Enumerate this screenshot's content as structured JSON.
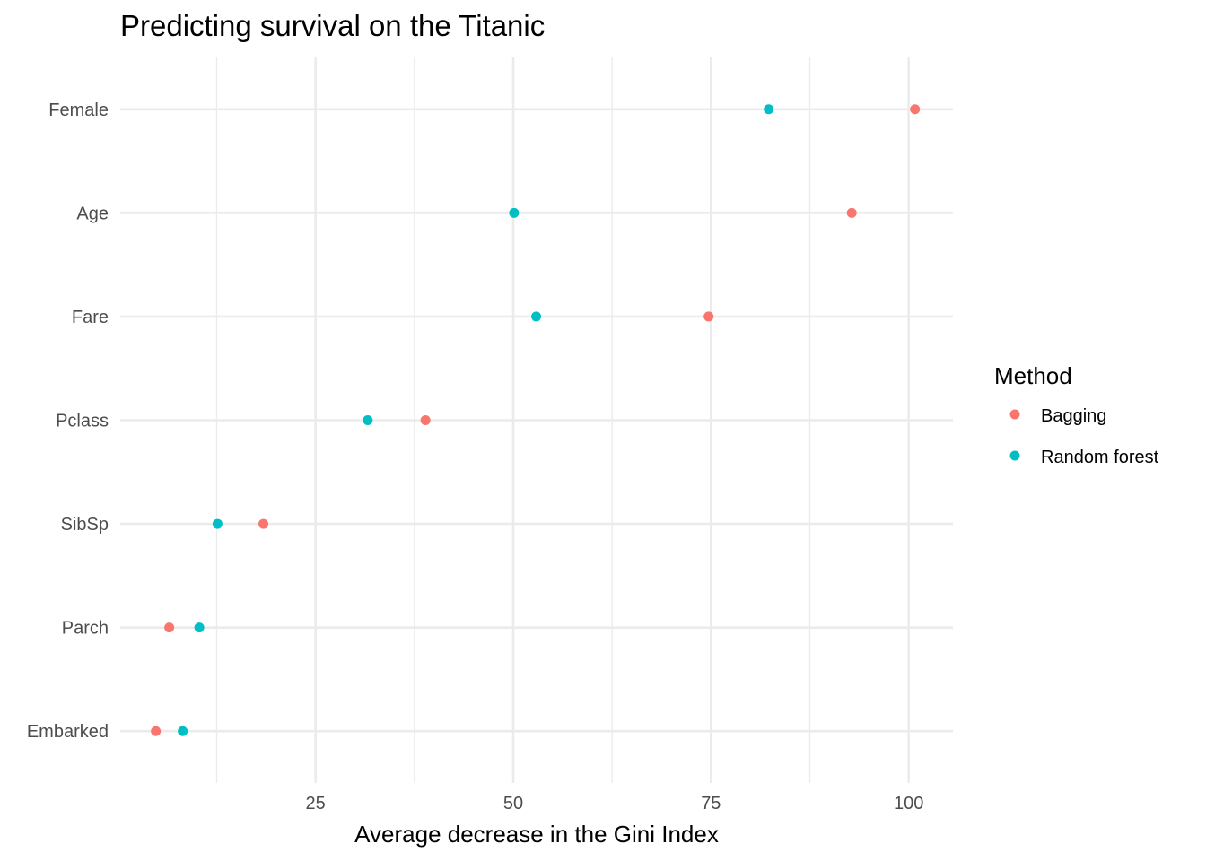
{
  "chart_data": {
    "type": "scatter",
    "title": "Predicting survival on the Titanic",
    "xlabel": "Average decrease in the Gini Index",
    "ylabel": "",
    "xlim": [
      0.3,
      105.6
    ],
    "x_ticks": [
      25,
      50,
      75,
      100
    ],
    "x_minor_ticks": [
      12.5,
      37.5,
      62.5,
      87.5
    ],
    "categories": [
      "Female",
      "Age",
      "Fare",
      "Pclass",
      "SibSp",
      "Parch",
      "Embarked"
    ],
    "legend_title": "Method",
    "legend_position": "right",
    "grid": true,
    "series": [
      {
        "name": "Bagging",
        "color": "#F8766D",
        "values": [
          100.8,
          92.8,
          74.7,
          38.9,
          18.4,
          6.5,
          4.8
        ]
      },
      {
        "name": "Random forest",
        "color": "#00BFC4",
        "values": [
          82.3,
          50.1,
          52.9,
          31.6,
          12.6,
          10.3,
          8.2
        ]
      }
    ]
  }
}
